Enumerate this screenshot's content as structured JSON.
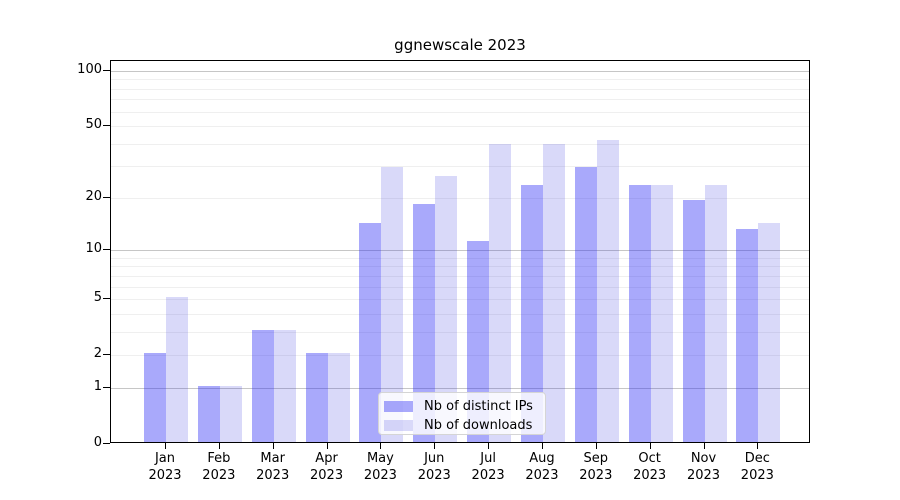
{
  "chart_data": {
    "type": "bar",
    "title": "ggnewscale 2023",
    "year": "2023",
    "categories": [
      "Jan",
      "Feb",
      "Mar",
      "Apr",
      "May",
      "Jun",
      "Jul",
      "Aug",
      "Sep",
      "Oct",
      "Nov",
      "Dec"
    ],
    "series": [
      {
        "name": "Nb of distinct IPs",
        "values": [
          2,
          1,
          3,
          2,
          14,
          18,
          11,
          23,
          29,
          23,
          19,
          13
        ],
        "fill": "rgba(40,40,245,0.40)",
        "color_hex": "#A9A9FA"
      },
      {
        "name": "Nb of downloads",
        "values": [
          5,
          1,
          3,
          2,
          29,
          26,
          39,
          39,
          41,
          23,
          23,
          14
        ],
        "fill": "rgba(44,44,222,0.18)",
        "color_hex": "#D9D9F9"
      }
    ],
    "xlabel": "",
    "ylabel": "",
    "ylim": [
      0,
      100
    ],
    "yscale": "log1p",
    "y_tick_labels": [
      100,
      50,
      20,
      10,
      5,
      2,
      1,
      0
    ],
    "y_major_gridlines": [
      1,
      10,
      100
    ],
    "y_minor_gridlines": [
      2,
      3,
      4,
      5,
      6,
      7,
      8,
      9,
      20,
      30,
      40,
      50,
      60,
      70,
      80,
      90
    ],
    "grid": true,
    "legend_position": "lower center",
    "colors": {
      "grid_minor": "#efefef",
      "grid_major": "#c6c6c6",
      "axis": "#000000",
      "legend_border": "#d5d5d5"
    }
  }
}
